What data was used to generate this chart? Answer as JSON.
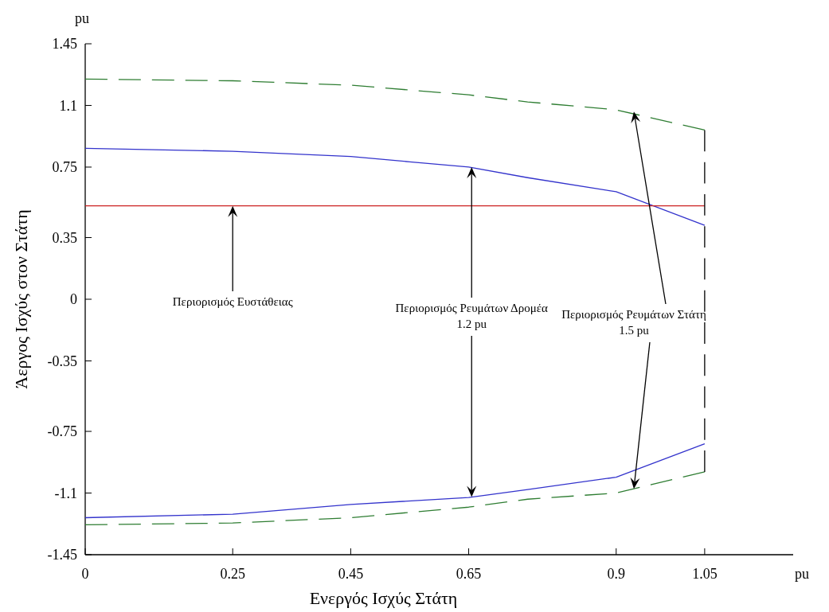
{
  "chart_data": {
    "type": "line",
    "xlabel": "Ενεργός Ισχύς Στάτη",
    "ylabel": "Άεργος Ισχύς στον Στάτη",
    "xlim": [
      0,
      1.2
    ],
    "xticks": [
      0,
      0.25,
      0.45,
      0.65,
      0.9,
      1.05
    ],
    "ylim": [
      -1.45,
      1.45
    ],
    "yticks": [
      -1.45,
      -1.1,
      -0.75,
      -0.35,
      0,
      0.35,
      0.75,
      1.1,
      1.45
    ],
    "grid": false,
    "marker": "none",
    "series": [
      {
        "color": "#2e7d32",
        "line_style": "dashed",
        "x": [
          0,
          0.25,
          0.45,
          0.65,
          0.75,
          0.9,
          1.05
        ],
        "values": [
          1.25,
          1.24,
          1.215,
          1.16,
          1.12,
          1.075,
          0.96
        ]
      },
      {
        "color": "#3333cc",
        "line_style": "solid",
        "x": [
          0,
          0.25,
          0.45,
          0.55,
          0.65,
          0.75,
          0.9,
          1.05
        ],
        "values": [
          0.857,
          0.84,
          0.81,
          0.78,
          0.75,
          0.69,
          0.61,
          0.42
        ]
      },
      {
        "color": "#cc2222",
        "line_style": "solid",
        "x": [
          0,
          1.05
        ],
        "values": [
          0.53,
          0.53
        ]
      },
      {
        "color": "#3333cc",
        "line_style": "solid",
        "x": [
          0,
          0.25,
          0.45,
          0.65,
          0.75,
          0.9,
          1.05
        ],
        "values": [
          -1.24,
          -1.22,
          -1.165,
          -1.125,
          -1.08,
          -1.01,
          -0.82
        ]
      },
      {
        "color": "#2e7d32",
        "line_style": "dashed",
        "x": [
          0,
          0.25,
          0.45,
          0.65,
          0.75,
          0.9,
          1.05
        ],
        "values": [
          -1.28,
          -1.27,
          -1.24,
          -1.18,
          -1.135,
          -1.1,
          -0.98
        ]
      },
      {
        "color": "#000000",
        "line_style": "dashed",
        "x": [
          1.05,
          1.05
        ],
        "values": [
          0.96,
          -0.98
        ]
      }
    ],
    "annotations": [
      {
        "text": "Περιορισμός Ευστάθειας",
        "x": 0.25,
        "y": 0.53
      },
      {
        "text": "Περιορισμός Ρευμάτων Δρομέα\n1.2 pu",
        "x": 0.655,
        "y": 0.75
      },
      {
        "text": "Περιορισμός Ρευμάτων Στάτη\n1.5 pu",
        "x": 0.93,
        "y": 1.065
      },
      "pu",
      "pu"
    ]
  }
}
